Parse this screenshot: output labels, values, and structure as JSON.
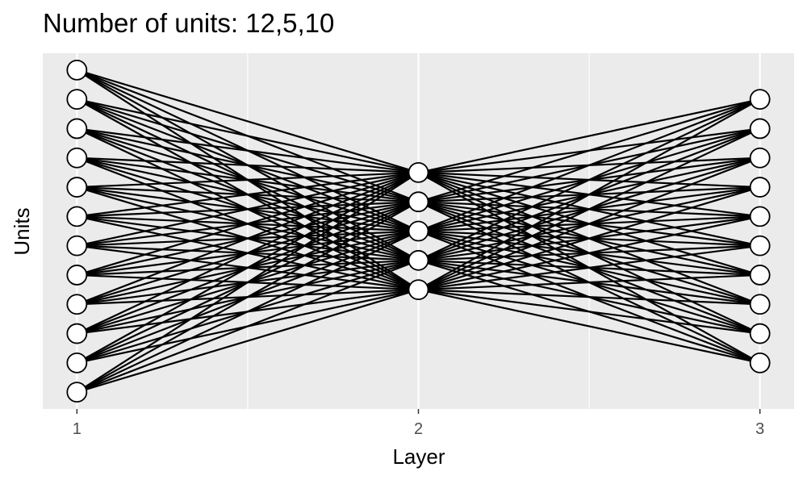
{
  "title": "Number of units: 12,5,10",
  "xlabel": "Layer",
  "ylabel": "Units",
  "x_ticks": [
    "1",
    "2",
    "3"
  ],
  "chart_data": {
    "type": "scatter",
    "title": "Number of units: 12,5,10",
    "xlabel": "Layer",
    "ylabel": "Units",
    "layers": [
      {
        "layer": 1,
        "units": 12
      },
      {
        "layer": 2,
        "units": 5
      },
      {
        "layer": 3,
        "units": 10
      }
    ],
    "connections": "fully connected between adjacent layers",
    "x_ticks": [
      "1",
      "2",
      "3"
    ],
    "xlim": [
      0.9,
      3.1
    ],
    "grid": true,
    "colors": {
      "panel_background": "#ebebeb",
      "gridline": "#ffffff",
      "edge": "#000000",
      "node_fill": "#ffffff",
      "node_stroke": "#000000"
    }
  }
}
